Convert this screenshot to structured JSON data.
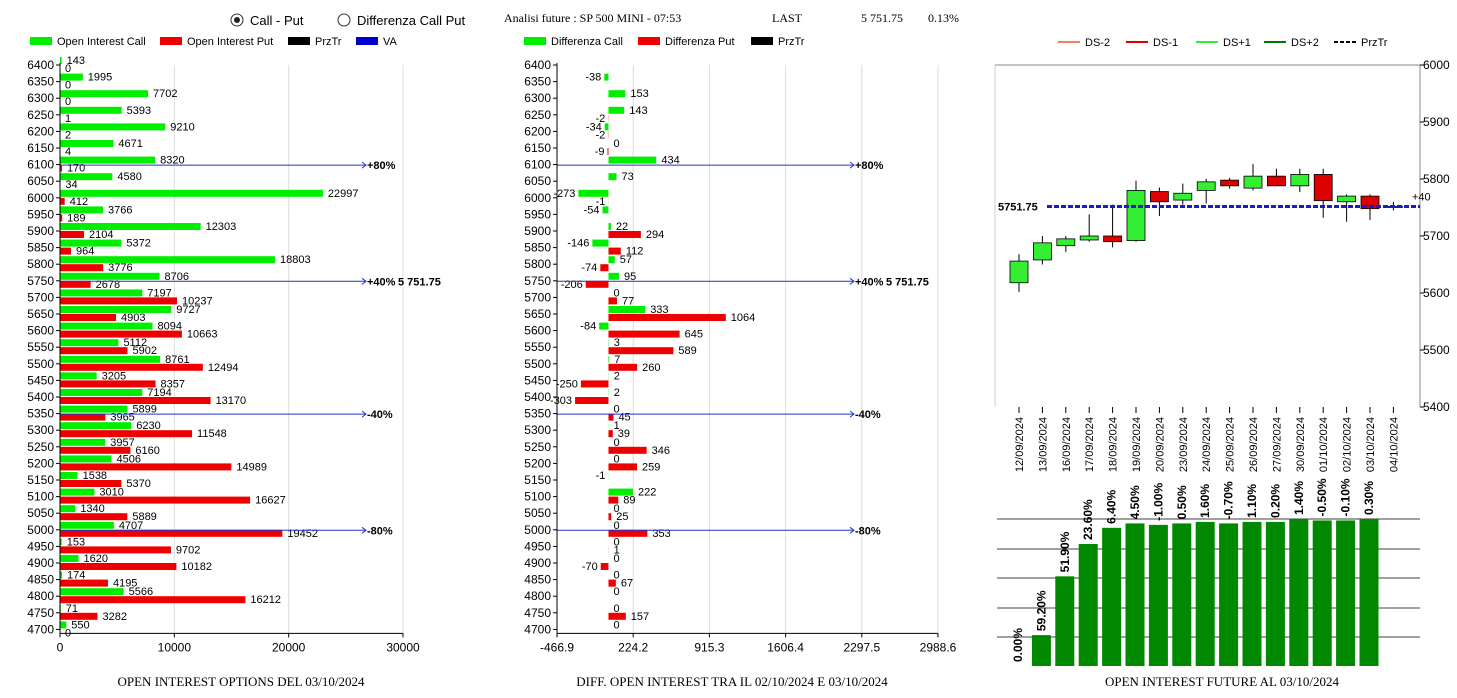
{
  "header": {
    "radio_options": [
      {
        "label": "Call - Put",
        "selected": true
      },
      {
        "label": "Differenza Call Put",
        "selected": false
      }
    ],
    "title": "Analisi future : SP 500 MINI - 07:53",
    "last_label": "LAST",
    "last_value": "5 751.75",
    "last_change": "0.13%"
  },
  "colors": {
    "call": "#00ee00",
    "put": "#ee0000",
    "przTr": "#000000",
    "va": "#0000cc",
    "dsm2": "#f08060",
    "dsm1": "#dd0000",
    "dsp1": "#33ee33",
    "dsp2": "#007700",
    "bar": "#008800"
  },
  "chart_data": [
    {
      "type": "bar",
      "orientation": "horizontal",
      "title": "OPEN INTEREST OPTIONS DEL 03/10/2024",
      "legend": [
        "Open Interest Call",
        "Open Interest Put",
        "PrzTr",
        "VA"
      ],
      "strikes": [
        6400,
        6350,
        6300,
        6250,
        6200,
        6150,
        6100,
        6050,
        6000,
        5950,
        5900,
        5850,
        5800,
        5750,
        5700,
        5650,
        5600,
        5550,
        5500,
        5450,
        5400,
        5350,
        5300,
        5250,
        5200,
        5150,
        5100,
        5050,
        5000,
        4950,
        4900,
        4850,
        4800,
        4750,
        4700
      ],
      "series": [
        {
          "name": "Open Interest Call",
          "values": [
            143,
            1995,
            7702,
            5393,
            9210,
            4671,
            8320,
            4580,
            22997,
            3766,
            12303,
            5372,
            18803,
            8706,
            7197,
            9727,
            8094,
            5112,
            8761,
            3205,
            7194,
            5899,
            6230,
            3957,
            4506,
            1538,
            3010,
            1340,
            4707,
            153,
            1620,
            174,
            5566,
            71,
            550
          ]
        },
        {
          "name": "Open Interest Put",
          "values": [
            0,
            0,
            0,
            1,
            2,
            4,
            170,
            34,
            412,
            189,
            2104,
            964,
            3776,
            2678,
            10237,
            4903,
            10663,
            5902,
            12494,
            8357,
            13170,
            3965,
            11548,
            6160,
            14989,
            5370,
            16627,
            5889,
            19452,
            9702,
            10182,
            4195,
            16212,
            3282,
            0
          ]
        }
      ],
      "xticks": [
        0,
        10000,
        20000,
        30000
      ],
      "xlim": [
        0,
        30000
      ],
      "levels": [
        {
          "strike": 6100,
          "label": "+80%"
        },
        {
          "strike": 5750,
          "label": "+40%",
          "price_label": "5 751.75"
        },
        {
          "strike": 5350,
          "label": "-40%"
        },
        {
          "strike": 5000,
          "label": "-80%"
        }
      ]
    },
    {
      "type": "bar",
      "orientation": "horizontal",
      "title": "DIFF. OPEN INTEREST TRA IL 02/10/2024 E 03/10/2024",
      "legend": [
        "Differenza Call",
        "Differenza Put",
        "PrzTr"
      ],
      "strikes": [
        6400,
        6350,
        6300,
        6250,
        6200,
        6150,
        6100,
        6050,
        6000,
        5950,
        5900,
        5850,
        5800,
        5750,
        5700,
        5650,
        5600,
        5550,
        5500,
        5450,
        5400,
        5350,
        5300,
        5250,
        5200,
        5150,
        5100,
        5050,
        5000,
        4950,
        4900,
        4850,
        4800,
        4750,
        4700
      ],
      "series": [
        {
          "name": "Differenza Call",
          "values": [
            null,
            -38,
            153,
            143,
            -34,
            0,
            434,
            73,
            -273,
            -54,
            22,
            -146,
            57,
            95,
            0,
            333,
            -84,
            3,
            7,
            2,
            2,
            0,
            1,
            0,
            0,
            -1,
            222,
            0,
            0,
            0,
            0,
            0,
            0,
            0,
            0
          ]
        },
        {
          "name": "Differenza Put",
          "values": [
            null,
            null,
            null,
            -2,
            -2,
            -9,
            null,
            null,
            -1,
            null,
            294,
            112,
            -74,
            -206,
            77,
            1064,
            645,
            589,
            260,
            -250,
            -303,
            45,
            39,
            346,
            259,
            null,
            89,
            25,
            353,
            1,
            -70,
            67,
            null,
            157,
            null
          ]
        }
      ],
      "xticks": [
        -466.9,
        224.2,
        915.3,
        1606.4,
        2297.5,
        2988.6
      ],
      "xlim": [
        -466.9,
        2988.6
      ],
      "levels": [
        {
          "strike": 6100,
          "label": "+80%"
        },
        {
          "strike": 5750,
          "label": "+40%",
          "price_label": "5 751.75"
        },
        {
          "strike": 5350,
          "label": "-40%"
        },
        {
          "strike": 5000,
          "label": "-80%"
        }
      ]
    },
    {
      "type": "candlestick",
      "legend": [
        "DS-2",
        "DS-1",
        "DS+1",
        "DS+2",
        "PrzTr"
      ],
      "dates": [
        "12/09/2024",
        "13/09/2024",
        "16/09/2024",
        "17/09/2024",
        "18/09/2024",
        "19/09/2024",
        "20/09/2024",
        "23/09/2024",
        "24/09/2024",
        "25/09/2024",
        "26/09/2024",
        "27/09/2024",
        "30/09/2024",
        "01/10/2024",
        "02/10/2024",
        "03/10/2024",
        "04/10/2024"
      ],
      "ohlc": [
        {
          "o": 5618,
          "h": 5668,
          "l": 5602,
          "c": 5656
        },
        {
          "o": 5658,
          "h": 5700,
          "l": 5650,
          "c": 5688
        },
        {
          "o": 5683,
          "h": 5700,
          "l": 5672,
          "c": 5695
        },
        {
          "o": 5693,
          "h": 5738,
          "l": 5690,
          "c": 5700
        },
        {
          "o": 5700,
          "h": 5755,
          "l": 5680,
          "c": 5690
        },
        {
          "o": 5692,
          "h": 5797,
          "l": 5690,
          "c": 5780
        },
        {
          "o": 5778,
          "h": 5785,
          "l": 5735,
          "c": 5760
        },
        {
          "o": 5763,
          "h": 5792,
          "l": 5755,
          "c": 5775
        },
        {
          "o": 5780,
          "h": 5800,
          "l": 5757,
          "c": 5795
        },
        {
          "o": 5798,
          "h": 5802,
          "l": 5783,
          "c": 5788
        },
        {
          "o": 5784,
          "h": 5826,
          "l": 5780,
          "c": 5805
        },
        {
          "o": 5805,
          "h": 5818,
          "l": 5788,
          "c": 5788
        },
        {
          "o": 5788,
          "h": 5818,
          "l": 5777,
          "c": 5808
        },
        {
          "o": 5808,
          "h": 5818,
          "l": 5732,
          "c": 5762
        },
        {
          "o": 5760,
          "h": 5773,
          "l": 5725,
          "c": 5770
        },
        {
          "o": 5770,
          "h": 5773,
          "l": 5728,
          "c": 5748
        },
        {
          "o": 5750,
          "h": 5760,
          "l": 5745,
          "c": 5752
        }
      ],
      "ylim": [
        5400,
        6000
      ],
      "yticks": [
        5400,
        5500,
        5600,
        5700,
        5800,
        5900,
        6000
      ],
      "price_label": "5751.75",
      "right_label": "+40",
      "price": 5751.75
    },
    {
      "type": "bar",
      "title": "OPEN INTEREST FUTURE AL 03/10/2024",
      "data_labels": [
        "0.00%",
        "59.20%",
        "51.90%",
        "23.60%",
        "6.40%",
        "4.50%",
        "-1.00%",
        "0.50%",
        "1.60%",
        "-0.70%",
        "1.10%",
        "0.20%",
        "1.40%",
        "-0.50%",
        "-0.10%",
        "0.30%"
      ],
      "values": [
        0.0,
        59.2,
        51.9,
        23.6,
        6.4,
        4.5,
        -1.0,
        0.5,
        1.6,
        -0.7,
        1.1,
        0.2,
        1.4,
        -0.5,
        -0.1,
        0.3
      ],
      "relative_heights": [
        0,
        0.21,
        0.61,
        0.83,
        0.94,
        0.97,
        0.96,
        0.97,
        0.98,
        0.97,
        0.98,
        0.98,
        1.0,
        0.99,
        0.99,
        1.0
      ]
    }
  ]
}
